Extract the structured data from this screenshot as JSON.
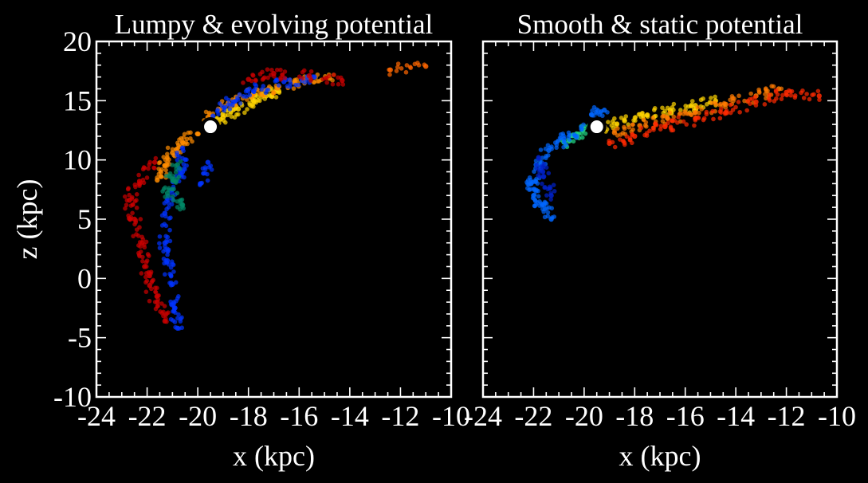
{
  "chart_data": [
    {
      "type": "scatter",
      "title": "Lumpy & evolving potential",
      "xlabel": "x (kpc)",
      "ylabel": "z (kpc)",
      "xlim": [
        -24,
        -10
      ],
      "ylim": [
        -10,
        20
      ],
      "xticks": [
        "-24",
        "-22",
        "-20",
        "-18",
        "-16",
        "-14",
        "-12",
        "-10"
      ],
      "yticks": [
        "-10",
        "-5",
        "0",
        "5",
        "10",
        "15",
        "20"
      ],
      "grid": false,
      "background": "#000000",
      "progenitor": {
        "x": -19.5,
        "z": 12.8,
        "color": "#ffffff"
      },
      "stream_segments": [
        {
          "color": "#ffd400",
          "points": [
            [
              -19.5,
              12.9
            ],
            [
              -19.0,
              13.6
            ],
            [
              -18.4,
              14.3
            ],
            [
              -17.8,
              15.0
            ],
            [
              -17.3,
              15.4
            ],
            [
              -16.8,
              15.8
            ]
          ]
        },
        {
          "color": "#ff8c00",
          "points": [
            [
              -20.0,
              12.2
            ],
            [
              -20.6,
              11.5
            ],
            [
              -21.0,
              10.6
            ],
            [
              -21.3,
              9.5
            ],
            [
              -21.6,
              8.3
            ],
            [
              -19.6,
              13.6
            ],
            [
              -18.8,
              14.8
            ],
            [
              -17.8,
              15.6
            ],
            [
              -16.8,
              16.2
            ],
            [
              -15.8,
              16.7
            ],
            [
              -14.8,
              16.9
            ]
          ]
        },
        {
          "color": "#0033ff",
          "points": [
            [
              -19.4,
              13.7
            ],
            [
              -18.6,
              14.9
            ],
            [
              -17.8,
              15.8
            ],
            [
              -16.6,
              16.6
            ],
            [
              -15.4,
              17.0
            ],
            [
              -20.6,
              11.0
            ],
            [
              -20.6,
              9.0
            ],
            [
              -21.0,
              7.5
            ],
            [
              -21.3,
              5.5
            ],
            [
              -21.3,
              3.0
            ],
            [
              -21.2,
              1.5
            ],
            [
              -21.0,
              -0.5
            ],
            [
              -20.9,
              -2.5
            ],
            [
              -20.8,
              -4.2
            ],
            [
              -19.9,
              8.0
            ],
            [
              -19.6,
              9.8
            ]
          ]
        },
        {
          "color": "#cc0000",
          "points": [
            [
              -21.7,
              9.8
            ],
            [
              -22.3,
              8.2
            ],
            [
              -22.7,
              6.6
            ],
            [
              -22.5,
              5.0
            ],
            [
              -22.2,
              3.0
            ],
            [
              -22.1,
              1.0
            ],
            [
              -21.9,
              -0.6
            ],
            [
              -21.6,
              -2.0
            ],
            [
              -21.3,
              -3.6
            ],
            [
              -18.0,
              16.8
            ],
            [
              -17.0,
              17.3
            ],
            [
              -15.6,
              17.1
            ],
            [
              -14.3,
              16.7
            ]
          ]
        },
        {
          "color": "#008866",
          "points": [
            [
              -20.8,
              9.6
            ],
            [
              -21.0,
              8.4
            ],
            [
              -21.2,
              7.2
            ],
            [
              -20.6,
              6.2
            ]
          ]
        },
        {
          "color": "#ff6600",
          "points": [
            [
              -12.4,
              17.6
            ],
            [
              -11.0,
              17.9
            ]
          ]
        }
      ]
    },
    {
      "type": "scatter",
      "title": "Smooth & static potential",
      "xlabel": "x (kpc)",
      "ylabel": "",
      "xlim": [
        -24,
        -10
      ],
      "ylim": [
        -10,
        20
      ],
      "xticks": [
        "-24",
        "-22",
        "-20",
        "-18",
        "-16",
        "-14",
        "-12",
        "-10"
      ],
      "yticks": [],
      "grid": false,
      "background": "#000000",
      "progenitor": {
        "x": -19.5,
        "z": 12.8,
        "color": "#ffffff"
      },
      "stream_segments": [
        {
          "color": "#ffd400",
          "points": [
            [
              -19.2,
              12.8
            ],
            [
              -18.4,
              13.3
            ],
            [
              -17.5,
              13.8
            ],
            [
              -16.6,
              14.2
            ],
            [
              -15.6,
              14.6
            ],
            [
              -14.8,
              15.0
            ]
          ]
        },
        {
          "color": "#ff7a00",
          "points": [
            [
              -18.8,
              12.3
            ],
            [
              -17.8,
              12.9
            ],
            [
              -16.7,
              13.5
            ],
            [
              -15.6,
              14.0
            ],
            [
              -14.4,
              14.7
            ],
            [
              -13.2,
              15.4
            ],
            [
              -12.3,
              16.0
            ]
          ]
        },
        {
          "color": "#ff2a00",
          "points": [
            [
              -19.0,
              11.4
            ],
            [
              -18.0,
              12.0
            ],
            [
              -16.8,
              12.8
            ],
            [
              -15.6,
              13.5
            ],
            [
              -14.4,
              14.0
            ],
            [
              -13.2,
              14.9
            ],
            [
              -12.0,
              15.7
            ],
            [
              -10.7,
              15.4
            ]
          ]
        },
        {
          "color": "#22dd88",
          "points": [
            [
              -19.8,
              12.9
            ],
            [
              -20.3,
              12.2
            ],
            [
              -20.8,
              11.5
            ]
          ]
        },
        {
          "color": "#0066ff",
          "points": [
            [
              -20.1,
              12.6
            ],
            [
              -20.8,
              11.8
            ],
            [
              -21.4,
              10.8
            ],
            [
              -21.9,
              9.6
            ],
            [
              -22.1,
              8.0
            ],
            [
              -22.0,
              7.0
            ],
            [
              -21.6,
              6.2
            ],
            [
              -21.3,
              5.0
            ],
            [
              -19.7,
              13.8
            ],
            [
              -19.2,
              14.2
            ]
          ]
        },
        {
          "color": "#0022cc",
          "points": [
            [
              -21.8,
              10.2
            ],
            [
              -21.6,
              8.6
            ],
            [
              -21.3,
              7.0
            ]
          ]
        }
      ]
    }
  ]
}
